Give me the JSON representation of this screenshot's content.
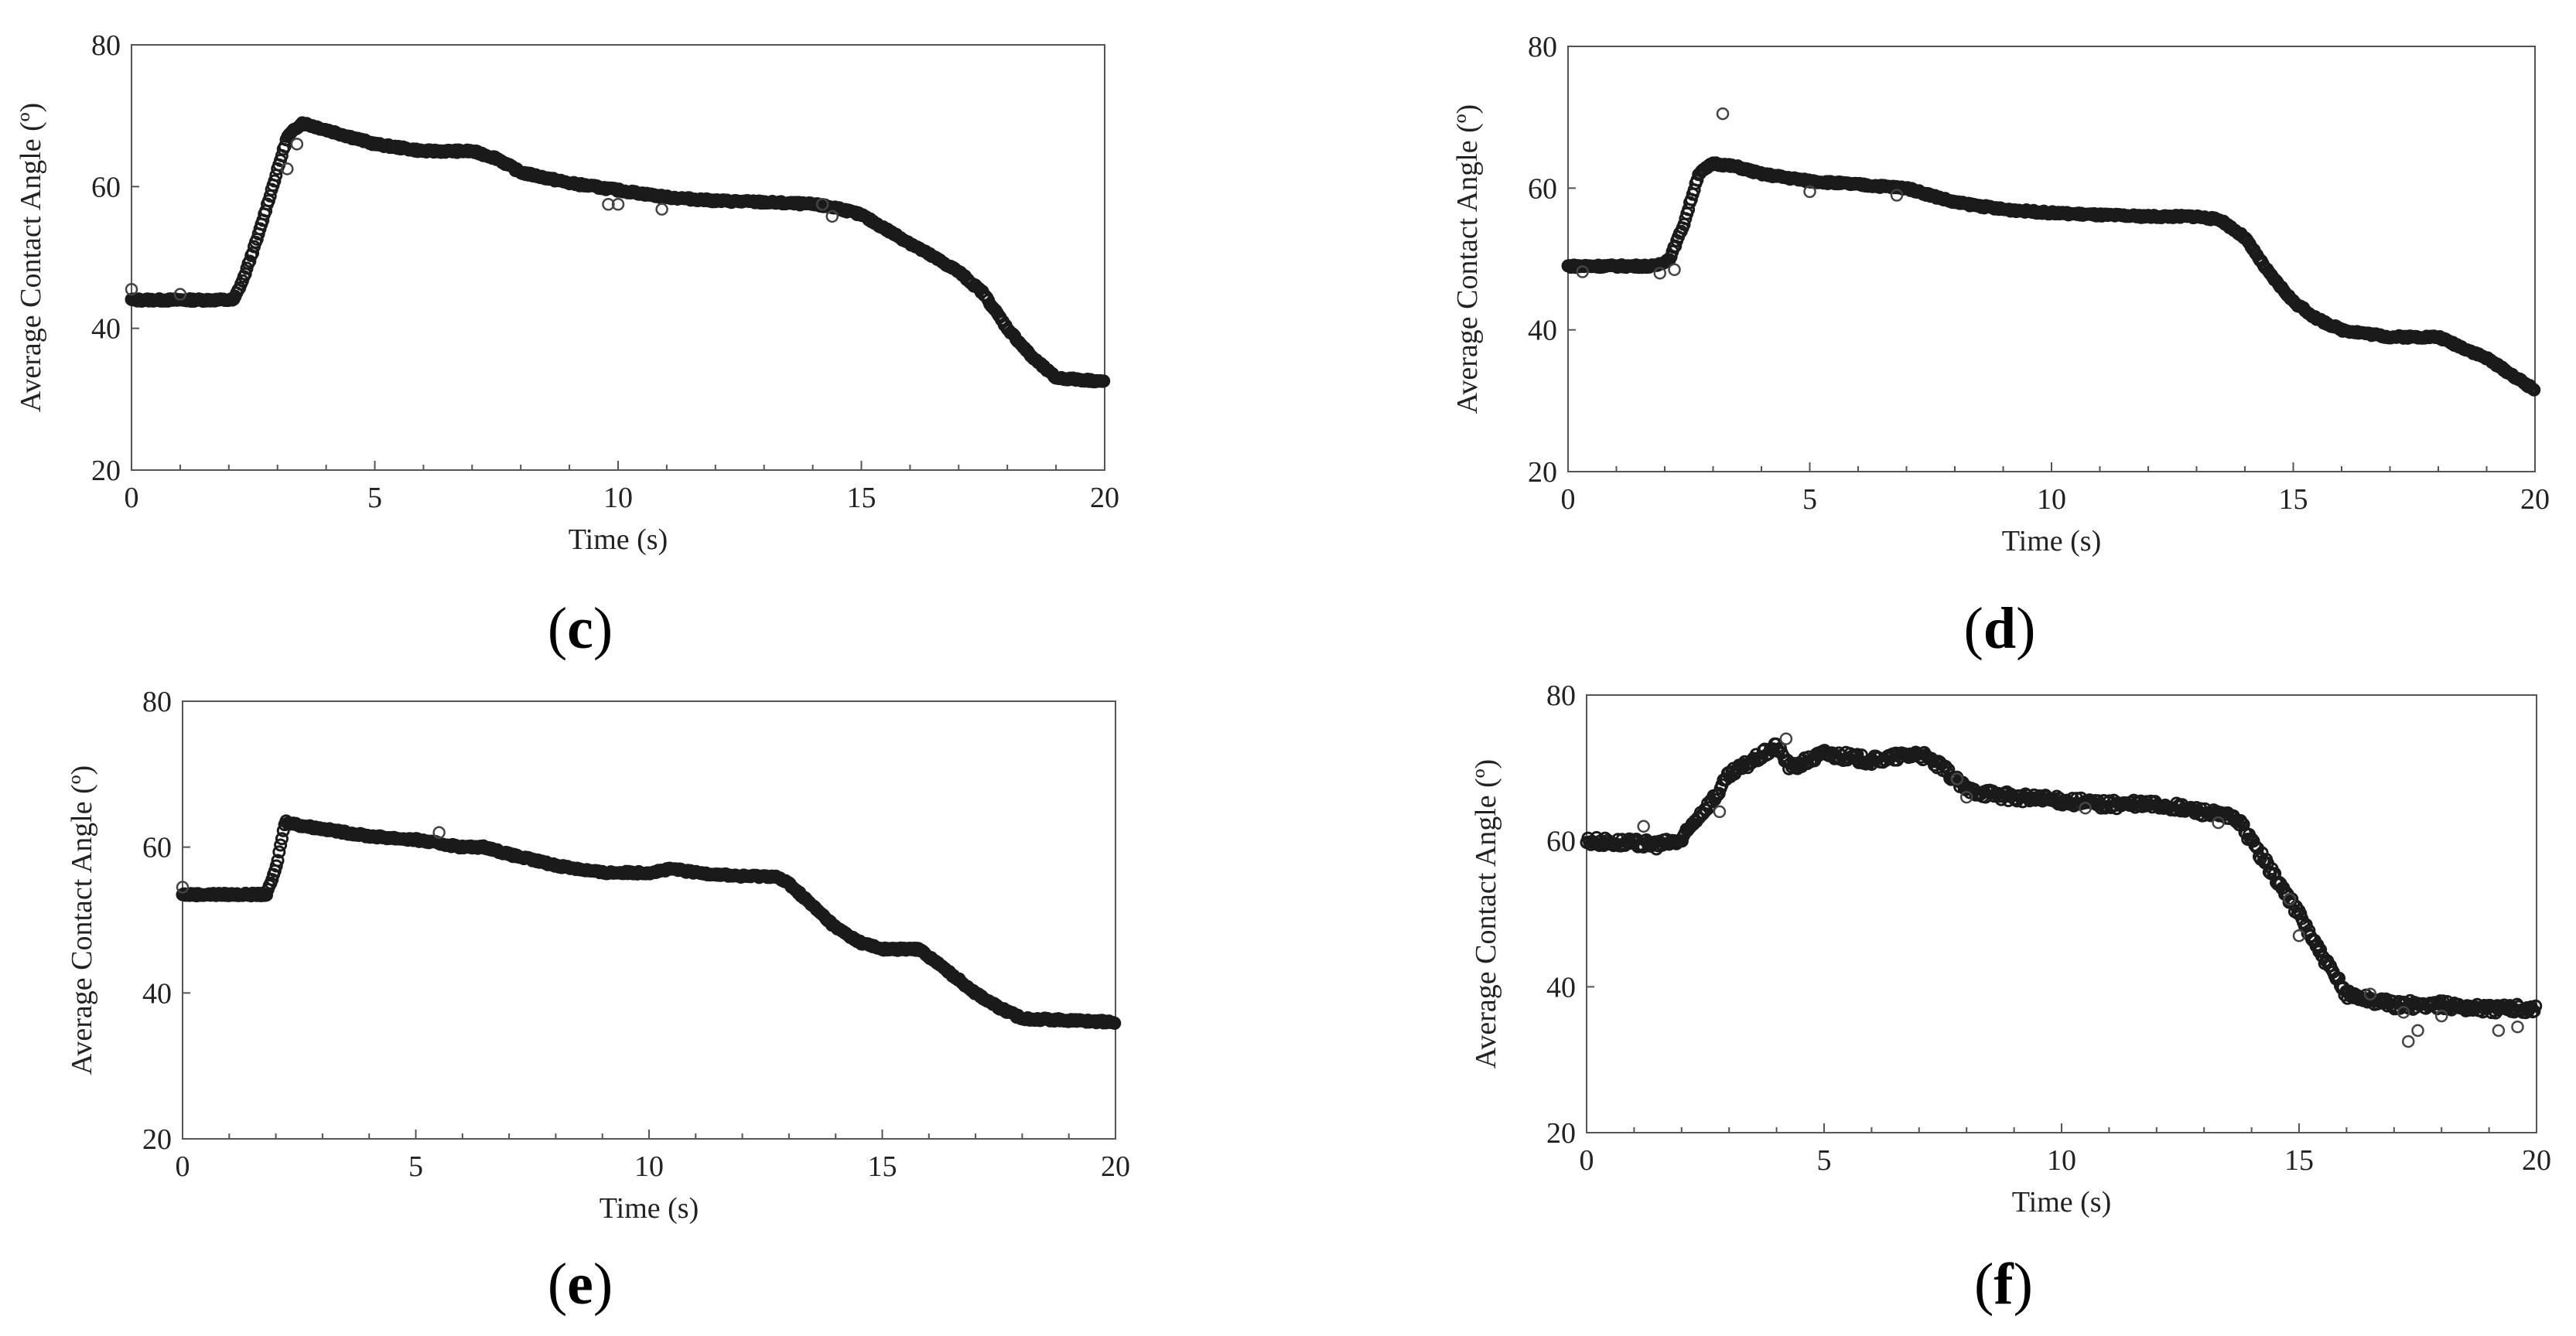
{
  "chart_data": [
    {
      "type": "scatter",
      "panel": "c",
      "xlabel": "Time (s)",
      "ylabel": "Average Contact Angle (º)",
      "xlim": [
        0,
        20
      ],
      "ylim": [
        20,
        80
      ],
      "xticks": [
        "0",
        "5",
        "10",
        "15",
        "20"
      ],
      "yticks": [
        "20",
        "40",
        "60",
        "80"
      ],
      "curve": [
        [
          0,
          44
        ],
        [
          2.1,
          44
        ],
        [
          2.3,
          47
        ],
        [
          2.6,
          53
        ],
        [
          2.9,
          60
        ],
        [
          3.2,
          67
        ],
        [
          3.5,
          69
        ],
        [
          4.0,
          68
        ],
        [
          5.0,
          66
        ],
        [
          6.0,
          65
        ],
        [
          7.0,
          65
        ],
        [
          7.5,
          64
        ],
        [
          8.0,
          62
        ],
        [
          9.0,
          60.5
        ],
        [
          10,
          59.5
        ],
        [
          11,
          58.5
        ],
        [
          12,
          58
        ],
        [
          13,
          57.8
        ],
        [
          14,
          57.5
        ],
        [
          14.5,
          57
        ],
        [
          15,
          56
        ],
        [
          16,
          52
        ],
        [
          17,
          48
        ],
        [
          17.5,
          45
        ],
        [
          18,
          40
        ],
        [
          18.5,
          36
        ],
        [
          19,
          33
        ],
        [
          20,
          32.5
        ]
      ],
      "outliers": [
        [
          3.2,
          62.5
        ],
        [
          3.4,
          66
        ],
        [
          9.8,
          57.5
        ],
        [
          10.0,
          57.5
        ],
        [
          10.9,
          56.8
        ],
        [
          14.2,
          57.5
        ],
        [
          14.4,
          55.8
        ],
        [
          0,
          45.5
        ],
        [
          1.0,
          44.8
        ]
      ]
    },
    {
      "type": "scatter",
      "panel": "d",
      "xlabel": "Time (s)",
      "ylabel": "Average Contact Angle (º)",
      "xlim": [
        0,
        20
      ],
      "ylim": [
        20,
        80
      ],
      "xticks": [
        "0",
        "5",
        "10",
        "15",
        "20"
      ],
      "yticks": [
        "20",
        "40",
        "60",
        "80"
      ],
      "curve": [
        [
          0,
          49
        ],
        [
          1.8,
          49
        ],
        [
          2.1,
          50
        ],
        [
          2.4,
          55
        ],
        [
          2.7,
          62
        ],
        [
          3.0,
          63.5
        ],
        [
          3.5,
          63
        ],
        [
          4.0,
          62
        ],
        [
          5.0,
          61
        ],
        [
          6.0,
          60.5
        ],
        [
          7.0,
          60
        ],
        [
          7.5,
          59
        ],
        [
          8.0,
          58
        ],
        [
          9.0,
          57
        ],
        [
          10,
          56.5
        ],
        [
          11,
          56.2
        ],
        [
          12,
          56
        ],
        [
          13,
          56
        ],
        [
          13.5,
          55.5
        ],
        [
          14,
          53
        ],
        [
          14.5,
          48
        ],
        [
          15,
          44
        ],
        [
          15.5,
          41.5
        ],
        [
          16,
          40
        ],
        [
          17,
          39
        ],
        [
          18,
          39
        ],
        [
          18.5,
          37.5
        ],
        [
          19,
          36
        ],
        [
          20,
          31.5
        ]
      ],
      "outliers": [
        [
          3.2,
          70.5
        ],
        [
          1.9,
          48
        ],
        [
          2.2,
          48.5
        ],
        [
          0.3,
          48.2
        ],
        [
          5.0,
          59.5
        ],
        [
          6.8,
          59
        ]
      ]
    },
    {
      "type": "scatter",
      "panel": "e",
      "xlabel": "Time (s)",
      "ylabel": "Average Contact Angle (º)",
      "xlim": [
        0,
        20
      ],
      "ylim": [
        20,
        80
      ],
      "xticks": [
        "0",
        "5",
        "10",
        "15",
        "20"
      ],
      "yticks": [
        "20",
        "40",
        "60",
        "80"
      ],
      "curve": [
        [
          0,
          53.5
        ],
        [
          1.8,
          53.5
        ],
        [
          2.0,
          57
        ],
        [
          2.2,
          63.5
        ],
        [
          2.5,
          63
        ],
        [
          3.0,
          62.5
        ],
        [
          4.0,
          61.5
        ],
        [
          5.0,
          61
        ],
        [
          6.0,
          60
        ],
        [
          6.5,
          60
        ],
        [
          7.0,
          59
        ],
        [
          8.0,
          57.5
        ],
        [
          9.0,
          56.5
        ],
        [
          10,
          56.5
        ],
        [
          10.5,
          57
        ],
        [
          11,
          56.5
        ],
        [
          12,
          56
        ],
        [
          12.7,
          56
        ],
        [
          13,
          55
        ],
        [
          13.5,
          52
        ],
        [
          14,
          49
        ],
        [
          14.5,
          47
        ],
        [
          15,
          46
        ],
        [
          15.8,
          46
        ],
        [
          16,
          45
        ],
        [
          17,
          40
        ],
        [
          17.5,
          38
        ],
        [
          18,
          36.5
        ],
        [
          20,
          36
        ]
      ],
      "outliers": [
        [
          5.5,
          62
        ],
        [
          0,
          54.5
        ]
      ]
    },
    {
      "type": "scatter",
      "panel": "f",
      "xlabel": "Time (s)",
      "ylabel": "Average Contact Angle (º)",
      "xlim": [
        0,
        20
      ],
      "ylim": [
        20,
        80
      ],
      "xticks": [
        "0",
        "5",
        "10",
        "15",
        "20"
      ],
      "yticks": [
        "20",
        "40",
        "60",
        "80"
      ],
      "curve": [
        [
          0,
          60
        ],
        [
          1.5,
          59.5
        ],
        [
          2.0,
          60
        ],
        [
          2.3,
          63
        ],
        [
          2.7,
          66
        ],
        [
          3.0,
          69
        ],
        [
          3.5,
          71
        ],
        [
          4.0,
          73
        ],
        [
          4.3,
          70
        ],
        [
          5.0,
          72
        ],
        [
          6.0,
          71
        ],
        [
          7.0,
          72
        ],
        [
          7.5,
          70
        ],
        [
          8.0,
          67
        ],
        [
          9.0,
          66
        ],
        [
          10,
          65.5
        ],
        [
          11,
          65
        ],
        [
          12,
          65
        ],
        [
          13,
          64
        ],
        [
          13.7,
          63
        ],
        [
          14,
          60
        ],
        [
          14.5,
          55
        ],
        [
          15,
          50
        ],
        [
          15.5,
          44
        ],
        [
          16,
          39
        ],
        [
          17,
          37.5
        ],
        [
          18,
          37.5
        ],
        [
          19,
          37
        ],
        [
          20,
          37
        ]
      ],
      "outliers": [
        [
          17.3,
          32.5
        ],
        [
          17.5,
          34
        ],
        [
          16.5,
          39
        ],
        [
          19.2,
          34
        ],
        [
          19.6,
          34.5
        ],
        [
          17.2,
          36.5
        ],
        [
          18.0,
          36
        ],
        [
          15.0,
          47
        ],
        [
          14.8,
          52
        ],
        [
          8.0,
          66
        ],
        [
          2.8,
          64
        ],
        [
          4.2,
          74
        ],
        [
          1.2,
          62
        ],
        [
          13.3,
          62.5
        ],
        [
          7.8,
          68.5
        ],
        [
          10.5,
          64.5
        ]
      ]
    }
  ],
  "panels": {
    "c": "c",
    "d": "d",
    "e": "e",
    "f": "f"
  }
}
